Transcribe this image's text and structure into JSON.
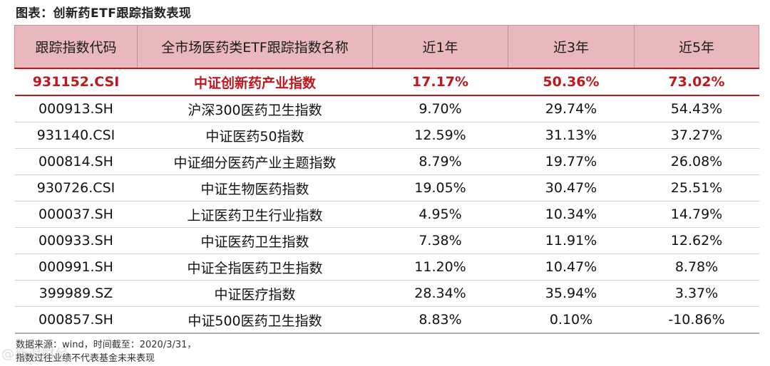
{
  "title": "图表：创新药ETF跟踪指数表现",
  "table": {
    "headers": [
      "跟踪指数代码",
      "全市场医药类ETF跟踪指数名称",
      "近1年",
      "近3年",
      "近5年"
    ],
    "rows": [
      {
        "code": "931152.CSI",
        "name": "中证创新药产业指数",
        "y1": "17.17%",
        "y3": "50.36%",
        "y5": "73.02%"
      },
      {
        "code": "000913.SH",
        "name": "沪深300医药卫生指数",
        "y1": "9.70%",
        "y3": "29.74%",
        "y5": "54.43%"
      },
      {
        "code": "931140.CSI",
        "name": "中证医药50指数",
        "y1": "12.59%",
        "y3": "31.13%",
        "y5": "37.27%"
      },
      {
        "code": "000814.SH",
        "name": "中证细分医药产业主题指数",
        "y1": "8.79%",
        "y3": "19.77%",
        "y5": "26.08%"
      },
      {
        "code": "930726.CSI",
        "name": "中证生物医药指数",
        "y1": "19.05%",
        "y3": "30.47%",
        "y5": "25.51%"
      },
      {
        "code": "000037.SH",
        "name": "上证医药卫生行业指数",
        "y1": "4.95%",
        "y3": "10.34%",
        "y5": "14.79%"
      },
      {
        "code": "000933.SH",
        "name": "中证医药卫生指数",
        "y1": "7.38%",
        "y3": "11.91%",
        "y5": "12.62%"
      },
      {
        "code": "000991.SH",
        "name": "中证全指医药卫生指数",
        "y1": "11.20%",
        "y3": "10.47%",
        "y5": "8.78%"
      },
      {
        "code": "399989.SZ",
        "name": "中证医疗指数",
        "y1": "28.34%",
        "y3": "35.94%",
        "y5": "3.37%"
      },
      {
        "code": "000857.SH",
        "name": "中证500医药卫生指数",
        "y1": "8.83%",
        "y3": "0.10%",
        "y5": "-10.86%"
      }
    ]
  },
  "source_line1": "数据来源：wind，时间截至：2020/3/31，",
  "source_line2": "指数过往业绩不代表基金未来表现",
  "watermark": "@新浪财经",
  "colors": {
    "header_bg": "#e8b8bc",
    "highlight_text": "#c0171f"
  }
}
